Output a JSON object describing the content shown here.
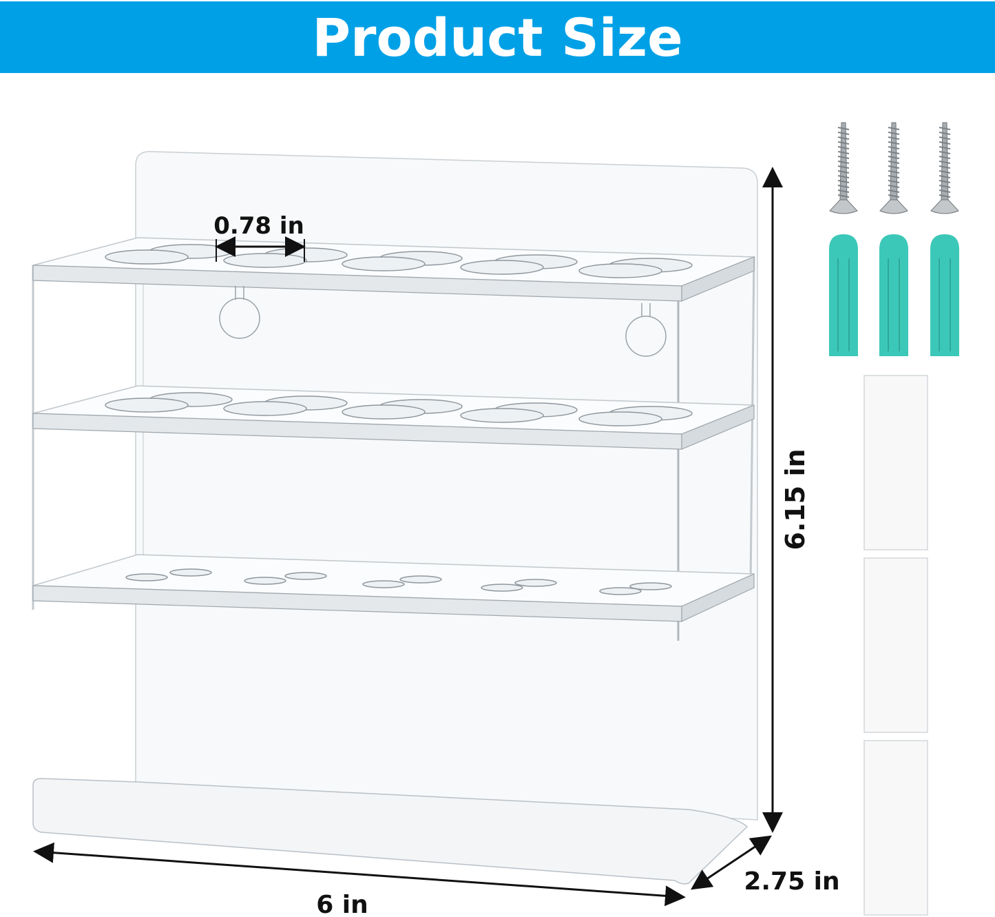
{
  "banner": {
    "title": "Product Size",
    "color": "#00a0e6"
  },
  "dimensions": {
    "hole_diameter": "0.78 in",
    "height": "6.15 in",
    "depth": "2.75 in",
    "width": "6 in"
  },
  "product": {
    "shelves": 3,
    "holes_per_shelf": 10,
    "material_color": "#d8dde2"
  },
  "accessories": {
    "screws": 3,
    "wall_anchors": 3,
    "anchor_color": "#3cc8b8",
    "adhesive_pads": 3
  }
}
